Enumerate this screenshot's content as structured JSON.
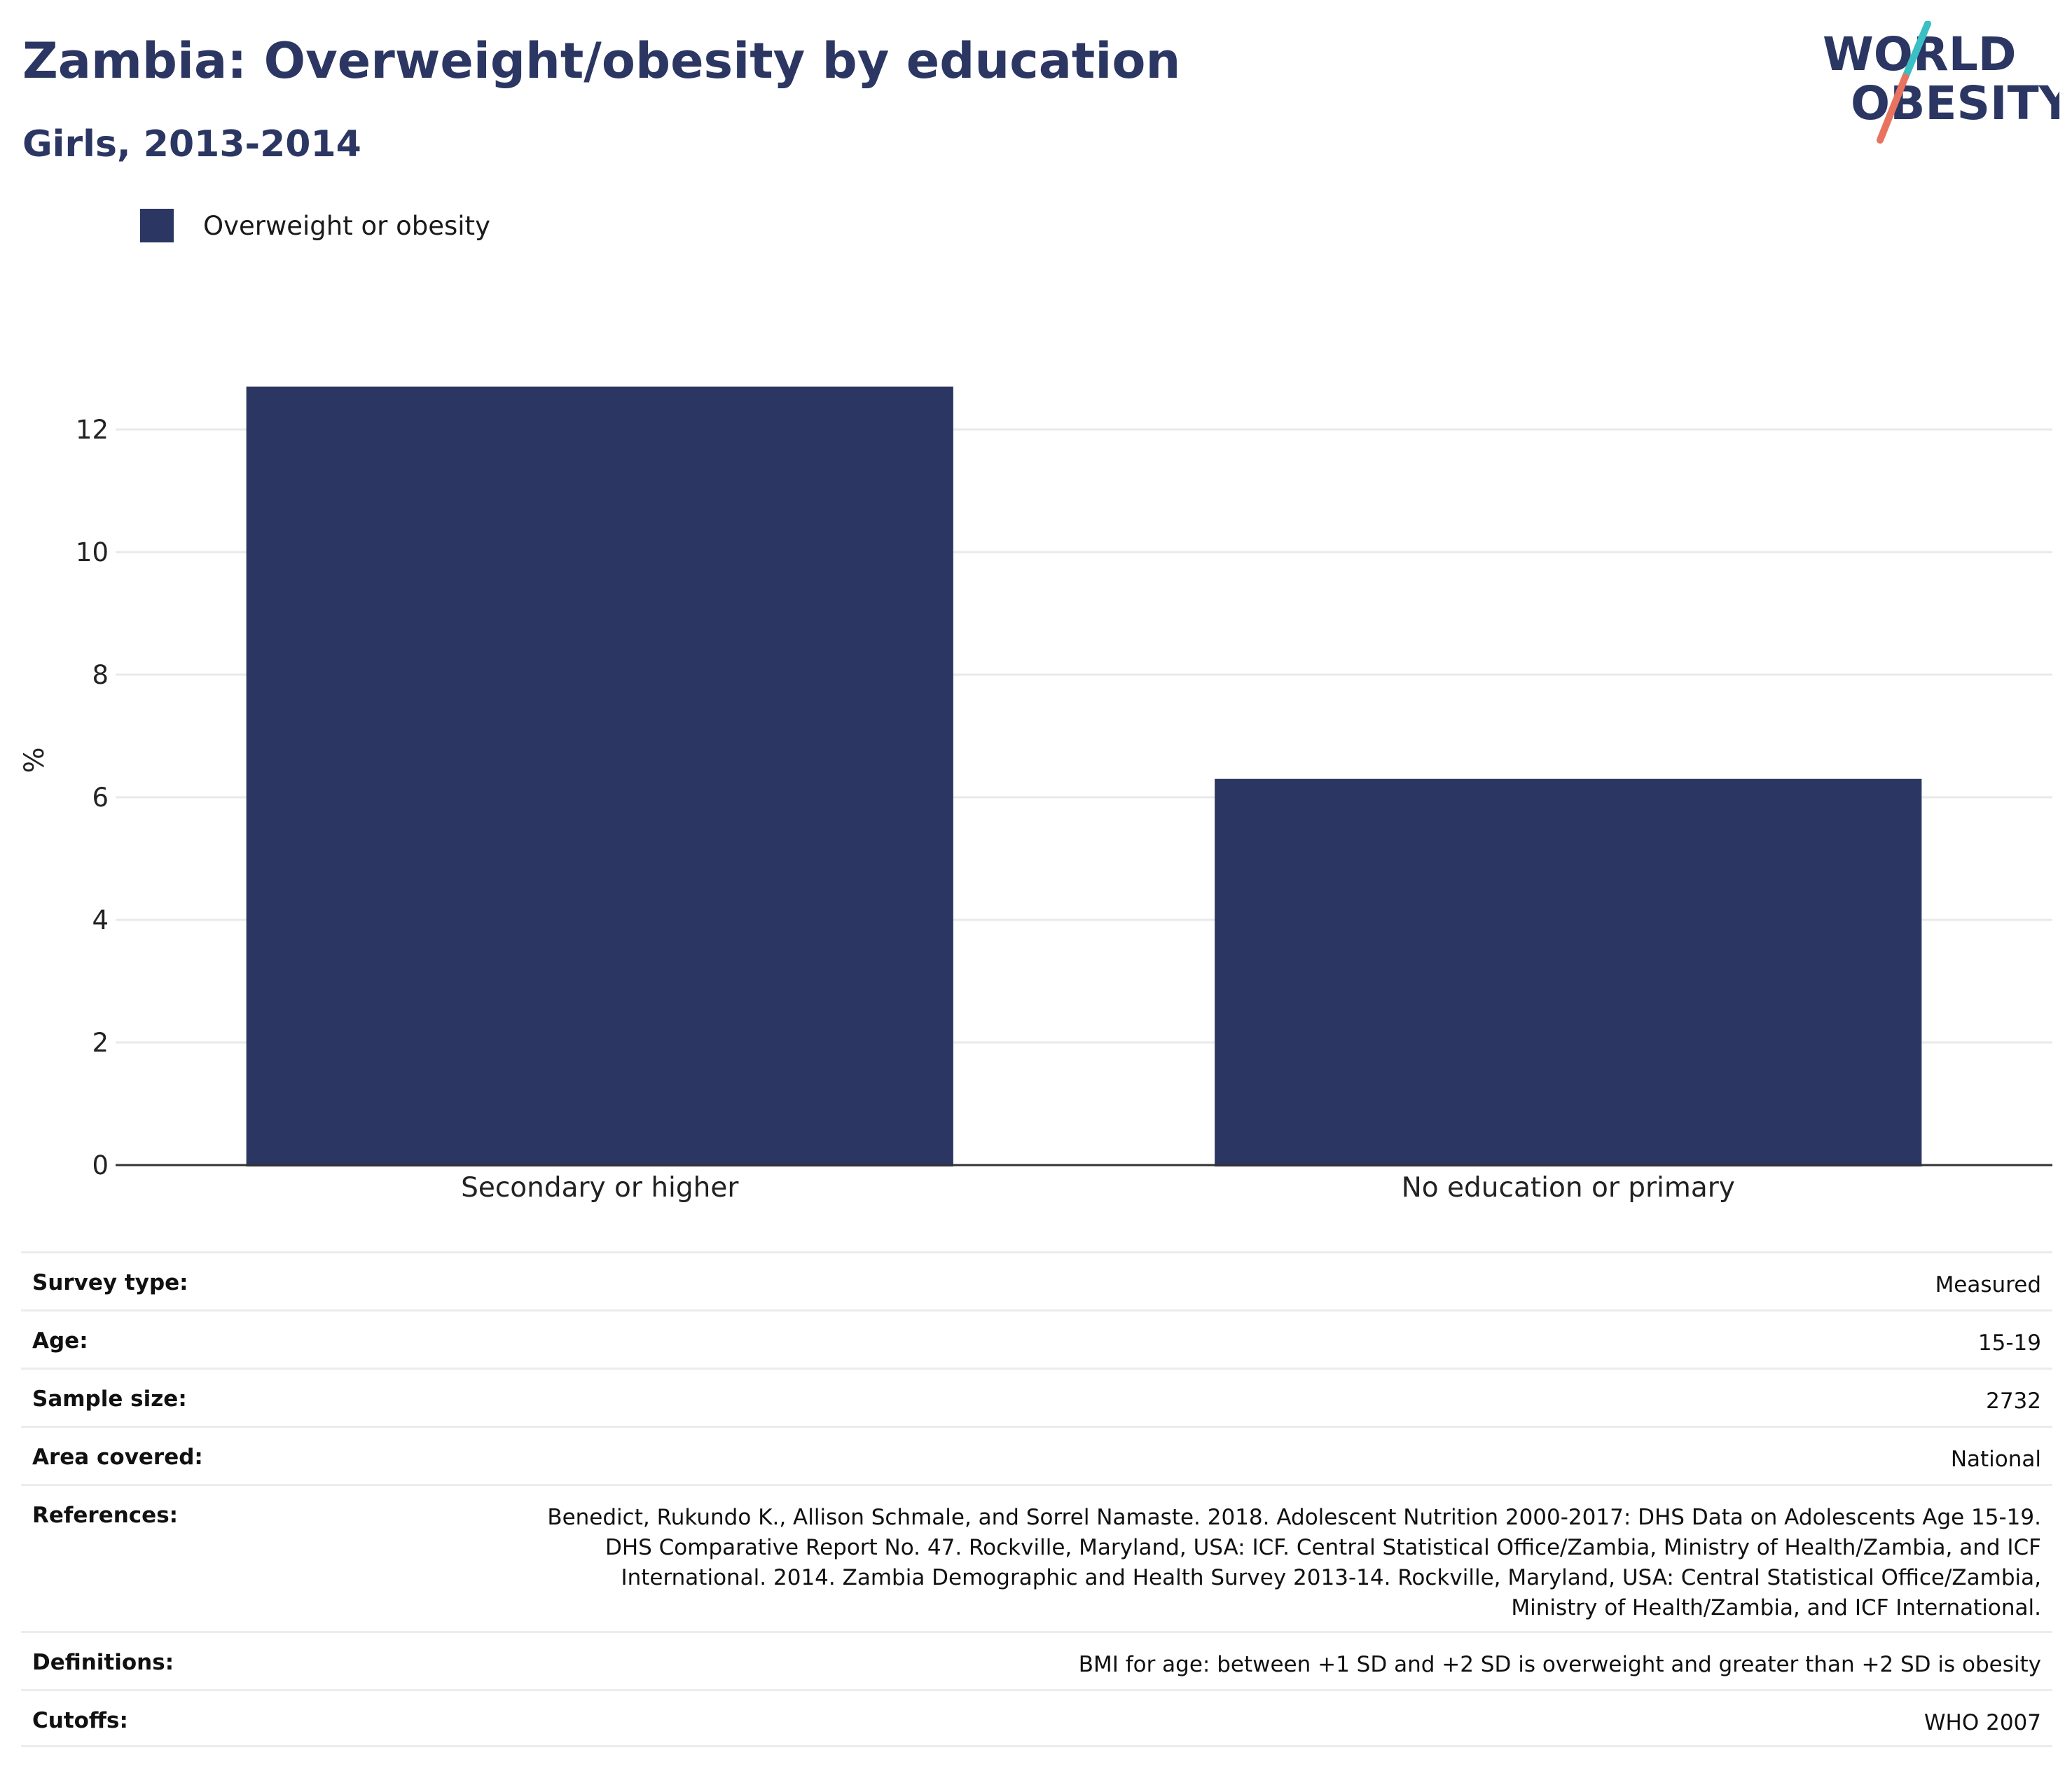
{
  "header": {
    "title": "Zambia: Overweight/obesity by education",
    "subtitle": "Girls, 2013-2014",
    "logo_line1": "WORLD",
    "logo_line2": "OBESITY"
  },
  "colors": {
    "brand": "#2b3663",
    "bar": "#2b3663",
    "logo_teal": "#3bbfc4",
    "logo_coral": "#e8735f",
    "grid": "#e9e9e9"
  },
  "chart_data": {
    "type": "bar",
    "categories": [
      "Secondary or higher",
      "No education or primary"
    ],
    "series": [
      {
        "name": "Overweight or obesity",
        "values": [
          12.7,
          6.3
        ]
      }
    ],
    "ylabel": "%",
    "xlabel": "",
    "ylim": [
      0,
      13.5
    ],
    "yticks": [
      0,
      2,
      4,
      6,
      8,
      10,
      12
    ],
    "grid": true,
    "legend": "top-left"
  },
  "meta": [
    {
      "key": "Survey type:",
      "value": "Measured"
    },
    {
      "key": "Age:",
      "value": "15-19"
    },
    {
      "key": "Sample size:",
      "value": "2732"
    },
    {
      "key": "Area covered:",
      "value": "National"
    },
    {
      "key": "References:",
      "value": "Benedict, Rukundo K., Allison Schmale, and Sorrel Namaste. 2018. Adolescent Nutrition 2000-2017: DHS Data on Adolescents Age 15-19. DHS Comparative Report No. 47. Rockville, Maryland, USA: ICF. Central Statistical Office/Zambia, Ministry of Health/Zambia, and ICF International. 2014. Zambia Demographic and Health Survey 2013-14. Rockville, Maryland, USA: Central Statistical Office/Zambia, Ministry of Health/Zambia, and ICF International."
    },
    {
      "key": "Definitions:",
      "value": "BMI for age: between +1 SD and +2 SD is overweight and greater than +2 SD is obesity"
    },
    {
      "key": "Cutoffs:",
      "value": "WHO 2007"
    }
  ]
}
